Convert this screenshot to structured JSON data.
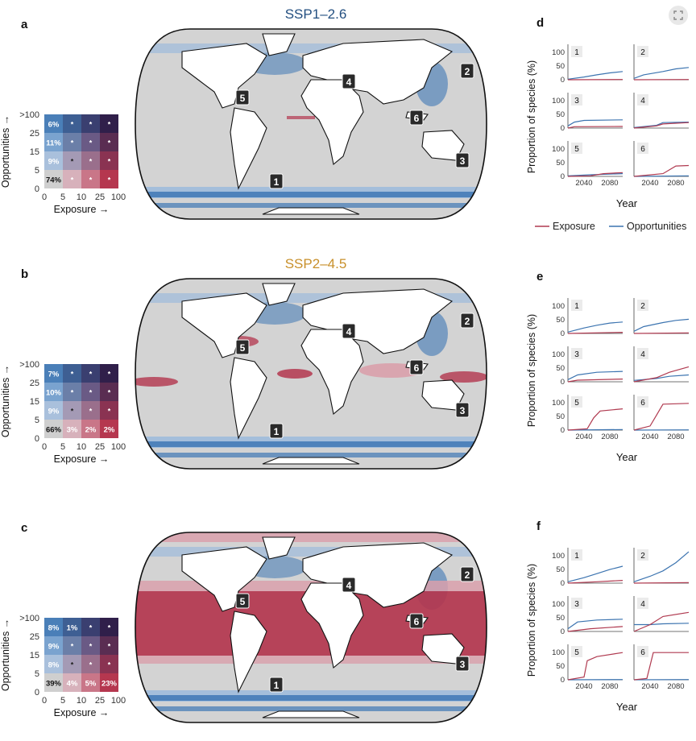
{
  "colors": {
    "ocean": "#d3d3d3",
    "land": "#ffffff",
    "blue_light": "#9ebbdc",
    "blue": "#3f78b5",
    "red_light": "#d9a0ab",
    "red": "#b3364e",
    "dark": "#3a1f3d",
    "exposure": "#b03a50",
    "opportunities": "#3c74b0",
    "title_ssp1": "#234f80",
    "title_ssp2": "#c8902b"
  },
  "icons": {
    "corner": "expand-icon"
  },
  "legend_common": {
    "x_label": "Exposure →",
    "y_label": "Opportunities →",
    "x_ticks": [
      "0",
      "5",
      "10",
      "25",
      "100"
    ],
    "y_ticks": [
      ">100",
      "25",
      "15",
      "5",
      "0"
    ]
  },
  "panels": [
    {
      "letter": "a",
      "title": "SSP1–2.6",
      "title_color": "#234f80",
      "left_col": [
        "6%",
        "11%",
        "9%",
        "74%"
      ],
      "bottom_row_rest": [
        "*",
        "*",
        "*"
      ],
      "hotspots": [
        "1",
        "2",
        "3",
        "4",
        "5",
        "6"
      ]
    },
    {
      "letter": "b",
      "title": "SSP2–4.5",
      "title_color": "#c8902b",
      "left_col": [
        "7%",
        "10%",
        "9%",
        "66%"
      ],
      "bottom_row_rest": [
        "3%",
        "2%",
        "2%"
      ],
      "hotspots": [
        "1",
        "2",
        "3",
        "4",
        "5",
        "6"
      ]
    },
    {
      "letter": "c",
      "title": "",
      "title_color": "#e6b6c0",
      "left_col": [
        "8%",
        "9%",
        "8%",
        "39%"
      ],
      "top_second": "1%",
      "bottom_row_rest": [
        "4%",
        "5%",
        "23%"
      ],
      "hotspots": [
        "1",
        "2",
        "3",
        "4",
        "5",
        "6"
      ]
    }
  ],
  "chart_data": {
    "type": "line",
    "y_label": "Proportion of species (%)",
    "x_label": "Year",
    "x_ticks": [
      "2040",
      "2080"
    ],
    "y_ticks": [
      "0",
      "50",
      "100"
    ],
    "ylim": [
      0,
      130
    ],
    "xlim": [
      2015,
      2100
    ],
    "legend": [
      "Exposure",
      "Opportunities"
    ],
    "groups": [
      {
        "letter": "d",
        "subplots": [
          {
            "id": "1",
            "exposure": [
              [
                2015,
                0
              ],
              [
                2100,
                1
              ]
            ],
            "opportunities": [
              [
                2015,
                2
              ],
              [
                2040,
                10
              ],
              [
                2060,
                18
              ],
              [
                2080,
                25
              ],
              [
                2100,
                30
              ]
            ]
          },
          {
            "id": "2",
            "exposure": [
              [
                2015,
                0
              ],
              [
                2100,
                1
              ]
            ],
            "opportunities": [
              [
                2015,
                5
              ],
              [
                2030,
                18
              ],
              [
                2060,
                30
              ],
              [
                2080,
                40
              ],
              [
                2100,
                45
              ]
            ]
          },
          {
            "id": "3",
            "exposure": [
              [
                2015,
                0
              ],
              [
                2025,
                5
              ],
              [
                2100,
                6
              ]
            ],
            "opportunities": [
              [
                2015,
                8
              ],
              [
                2025,
                22
              ],
              [
                2040,
                28
              ],
              [
                2100,
                30
              ]
            ]
          },
          {
            "id": "4",
            "exposure": [
              [
                2015,
                0
              ],
              [
                2050,
                8
              ],
              [
                2060,
                15
              ],
              [
                2100,
                20
              ]
            ],
            "opportunities": [
              [
                2015,
                2
              ],
              [
                2050,
                10
              ],
              [
                2060,
                20
              ],
              [
                2100,
                22
              ]
            ]
          },
          {
            "id": "5",
            "exposure": [
              [
                2015,
                0
              ],
              [
                2050,
                2
              ],
              [
                2070,
                10
              ],
              [
                2100,
                14
              ]
            ],
            "opportunities": [
              [
                2015,
                2
              ],
              [
                2050,
                6
              ],
              [
                2100,
                10
              ]
            ]
          },
          {
            "id": "6",
            "exposure": [
              [
                2015,
                0
              ],
              [
                2060,
                10
              ],
              [
                2080,
                38
              ],
              [
                2100,
                40
              ]
            ],
            "opportunities": [
              [
                2015,
                0
              ],
              [
                2100,
                2
              ]
            ]
          }
        ]
      },
      {
        "letter": "e",
        "subplots": [
          {
            "id": "1",
            "exposure": [
              [
                2015,
                0
              ],
              [
                2100,
                4
              ]
            ],
            "opportunities": [
              [
                2015,
                5
              ],
              [
                2040,
                20
              ],
              [
                2060,
                30
              ],
              [
                2080,
                38
              ],
              [
                2100,
                42
              ]
            ]
          },
          {
            "id": "2",
            "exposure": [
              [
                2015,
                0
              ],
              [
                2100,
                2
              ]
            ],
            "opportunities": [
              [
                2015,
                8
              ],
              [
                2030,
                25
              ],
              [
                2060,
                40
              ],
              [
                2080,
                48
              ],
              [
                2100,
                52
              ]
            ]
          },
          {
            "id": "3",
            "exposure": [
              [
                2015,
                0
              ],
              [
                2030,
                6
              ],
              [
                2100,
                10
              ]
            ],
            "opportunities": [
              [
                2015,
                8
              ],
              [
                2030,
                25
              ],
              [
                2060,
                35
              ],
              [
                2100,
                38
              ]
            ]
          },
          {
            "id": "4",
            "exposure": [
              [
                2015,
                0
              ],
              [
                2050,
                15
              ],
              [
                2070,
                35
              ],
              [
                2100,
                55
              ]
            ],
            "opportunities": [
              [
                2015,
                5
              ],
              [
                2050,
                12
              ],
              [
                2070,
                20
              ],
              [
                2100,
                25
              ]
            ]
          },
          {
            "id": "5",
            "exposure": [
              [
                2015,
                0
              ],
              [
                2045,
                5
              ],
              [
                2055,
                45
              ],
              [
                2065,
                70
              ],
              [
                2100,
                78
              ]
            ],
            "opportunities": [
              [
                2015,
                0
              ],
              [
                2100,
                2
              ]
            ]
          },
          {
            "id": "6",
            "exposure": [
              [
                2015,
                0
              ],
              [
                2040,
                15
              ],
              [
                2050,
                55
              ],
              [
                2060,
                95
              ],
              [
                2100,
                98
              ]
            ],
            "opportunities": [
              [
                2015,
                0
              ],
              [
                2100,
                1
              ]
            ]
          }
        ]
      },
      {
        "letter": "f",
        "subplots": [
          {
            "id": "1",
            "exposure": [
              [
                2015,
                0
              ],
              [
                2060,
                5
              ],
              [
                2100,
                10
              ]
            ],
            "opportunities": [
              [
                2015,
                5
              ],
              [
                2040,
                20
              ],
              [
                2060,
                35
              ],
              [
                2080,
                50
              ],
              [
                2100,
                62
              ]
            ]
          },
          {
            "id": "2",
            "exposure": [
              [
                2015,
                0
              ],
              [
                2100,
                2
              ]
            ],
            "opportunities": [
              [
                2015,
                5
              ],
              [
                2040,
                25
              ],
              [
                2060,
                45
              ],
              [
                2080,
                75
              ],
              [
                2100,
                115
              ]
            ]
          },
          {
            "id": "3",
            "exposure": [
              [
                2015,
                0
              ],
              [
                2050,
                10
              ],
              [
                2100,
                18
              ]
            ],
            "opportunities": [
              [
                2015,
                10
              ],
              [
                2030,
                35
              ],
              [
                2060,
                42
              ],
              [
                2100,
                45
              ]
            ]
          },
          {
            "id": "4",
            "exposure": [
              [
                2015,
                0
              ],
              [
                2040,
                25
              ],
              [
                2060,
                55
              ],
              [
                2100,
                70
              ]
            ],
            "opportunities": [
              [
                2015,
                25
              ],
              [
                2040,
                25
              ],
              [
                2060,
                28
              ],
              [
                2100,
                30
              ]
            ]
          },
          {
            "id": "5",
            "exposure": [
              [
                2015,
                0
              ],
              [
                2040,
                10
              ],
              [
                2045,
                70
              ],
              [
                2060,
                85
              ],
              [
                2100,
                100
              ]
            ],
            "opportunities": [
              [
                2015,
                0
              ],
              [
                2100,
                1
              ]
            ]
          },
          {
            "id": "6",
            "exposure": [
              [
                2015,
                0
              ],
              [
                2035,
                5
              ],
              [
                2045,
                100
              ],
              [
                2100,
                100
              ]
            ],
            "opportunities": [
              [
                2015,
                0
              ],
              [
                2100,
                1
              ]
            ]
          }
        ]
      }
    ]
  }
}
